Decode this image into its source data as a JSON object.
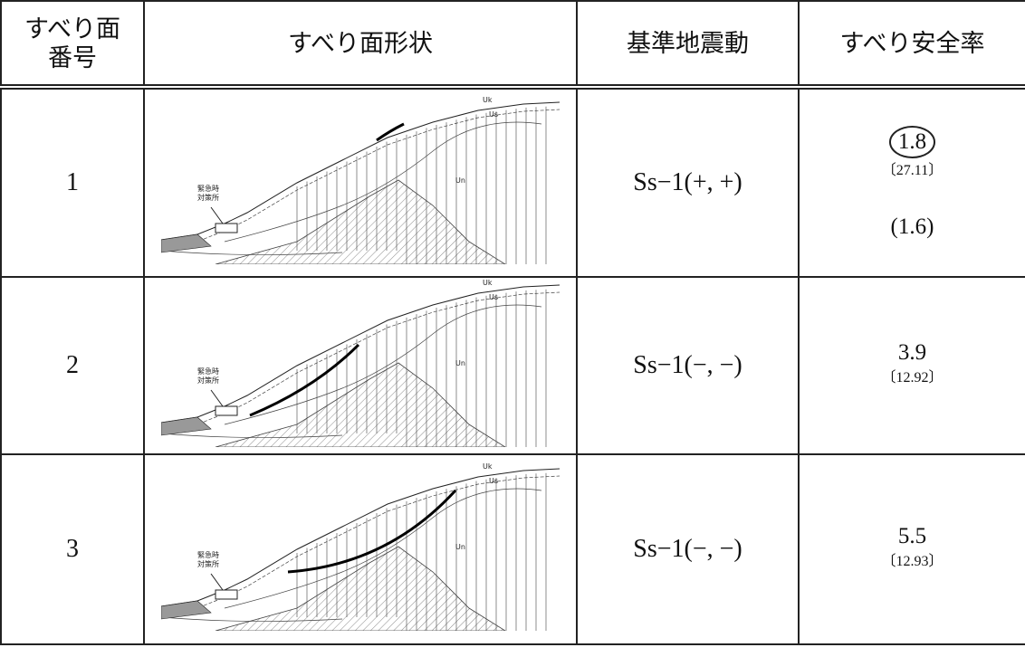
{
  "header": {
    "number": [
      "すべり面",
      "番号"
    ],
    "shape": "すべり面形状",
    "ground_motion": "基準地震動",
    "safety_factor": "すべり安全率"
  },
  "rows": [
    {
      "number": "1",
      "figure": {
        "facility": [
          "緊急時",
          "対策所"
        ],
        "layers": [
          "Uk",
          "Us",
          "Un"
        ]
      },
      "ground_motion": "Ss−1(+, +)",
      "safety_factor": "1.8",
      "time": "〔27.11〕",
      "note": "(1.6)"
    },
    {
      "number": "2",
      "figure": {
        "facility": [
          "緊急時",
          "対策所"
        ],
        "layers": [
          "Uk",
          "Us",
          "Un"
        ]
      },
      "ground_motion": "Ss−1(−, −)",
      "safety_factor": "3.9",
      "time": "〔12.92〕"
    },
    {
      "number": "3",
      "figure": {
        "facility": [
          "緊急時",
          "対策所"
        ],
        "layers": [
          "Uk",
          "Us",
          "Un"
        ]
      },
      "ground_motion": "Ss−1(−, −)",
      "safety_factor": "5.5",
      "time": "〔12.93〕"
    }
  ]
}
